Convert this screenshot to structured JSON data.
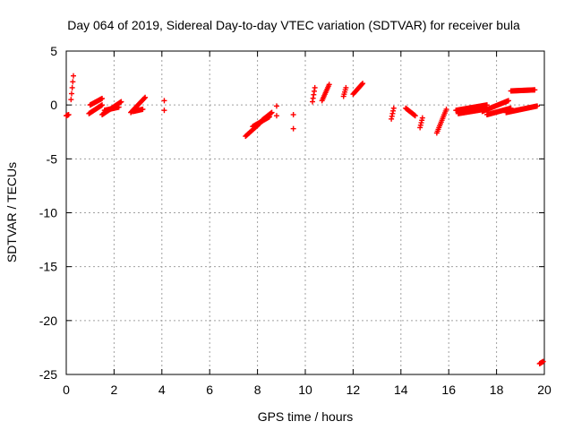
{
  "chart_data": {
    "type": "scatter",
    "title": "Day 064 of 2019, Sidereal Day-to-day VTEC variation (SDTVAR) for receiver bula",
    "xlabel": "GPS time / hours",
    "ylabel": "SDTVAR / TECUs",
    "xlim": [
      0,
      20
    ],
    "ylim": [
      -25,
      5
    ],
    "xticks": [
      0,
      2,
      4,
      6,
      8,
      10,
      12,
      14,
      16,
      18,
      20
    ],
    "yticks": [
      5,
      0,
      -5,
      -10,
      -15,
      -20,
      -25
    ],
    "grid": true,
    "marker": "plus",
    "color": "#ff0000",
    "segments": [
      {
        "x0": 0.0,
        "x1": 0.1,
        "y0": -1.0,
        "y1": -0.9
      },
      {
        "x0": 0.2,
        "x1": 0.3,
        "y0": 0.5,
        "y1": 2.7
      },
      {
        "x0": 0.95,
        "x1": 1.5,
        "y0": -0.8,
        "y1": 0.0
      },
      {
        "x0": 1.0,
        "x1": 1.5,
        "y0": 0.0,
        "y1": 0.6
      },
      {
        "x0": 1.5,
        "x1": 2.3,
        "y0": -0.9,
        "y1": 0.3
      },
      {
        "x0": 1.6,
        "x1": 2.2,
        "y0": -0.5,
        "y1": -0.2
      },
      {
        "x0": 2.7,
        "x1": 3.3,
        "y0": -0.7,
        "y1": 0.7
      },
      {
        "x0": 2.8,
        "x1": 3.2,
        "y0": -0.6,
        "y1": -0.4
      },
      {
        "x0": 4.1,
        "x1": 4.1,
        "y0": -0.5,
        "y1": 0.4
      },
      {
        "x0": 7.5,
        "x1": 8.1,
        "y0": -2.9,
        "y1": -1.7
      },
      {
        "x0": 7.8,
        "x1": 8.5,
        "y0": -2.0,
        "y1": -1.1
      },
      {
        "x0": 8.2,
        "x1": 8.6,
        "y0": -1.4,
        "y1": -0.7
      },
      {
        "x0": 8.8,
        "x1": 8.8,
        "y0": -1.0,
        "y1": -0.1
      },
      {
        "x0": 9.5,
        "x1": 9.5,
        "y0": -2.2,
        "y1": -0.9
      },
      {
        "x0": 10.3,
        "x1": 10.4,
        "y0": 0.3,
        "y1": 1.6
      },
      {
        "x0": 10.7,
        "x1": 11.0,
        "y0": 0.4,
        "y1": 1.9
      },
      {
        "x0": 11.6,
        "x1": 11.7,
        "y0": 0.8,
        "y1": 1.6
      },
      {
        "x0": 12.0,
        "x1": 12.4,
        "y0": 1.0,
        "y1": 2.0
      },
      {
        "x0": 13.6,
        "x1": 13.7,
        "y0": -1.3,
        "y1": -0.3
      },
      {
        "x0": 14.2,
        "x1": 14.6,
        "y0": -0.3,
        "y1": -1.0
      },
      {
        "x0": 14.8,
        "x1": 14.9,
        "y0": -2.1,
        "y1": -1.2
      },
      {
        "x0": 15.5,
        "x1": 15.9,
        "y0": -2.6,
        "y1": -0.4
      },
      {
        "x0": 16.3,
        "x1": 17.6,
        "y0": -0.5,
        "y1": 0.0
      },
      {
        "x0": 16.4,
        "x1": 17.5,
        "y0": -0.8,
        "y1": -0.4
      },
      {
        "x0": 17.4,
        "x1": 18.5,
        "y0": -0.6,
        "y1": 0.4
      },
      {
        "x0": 17.6,
        "x1": 18.6,
        "y0": -0.9,
        "y1": -0.3
      },
      {
        "x0": 18.4,
        "x1": 19.7,
        "y0": -0.7,
        "y1": -0.1
      },
      {
        "x0": 18.6,
        "x1": 19.6,
        "y0": 1.3,
        "y1": 1.4
      },
      {
        "x0": 19.8,
        "x1": 19.95,
        "y0": -24.0,
        "y1": -23.8
      }
    ]
  }
}
